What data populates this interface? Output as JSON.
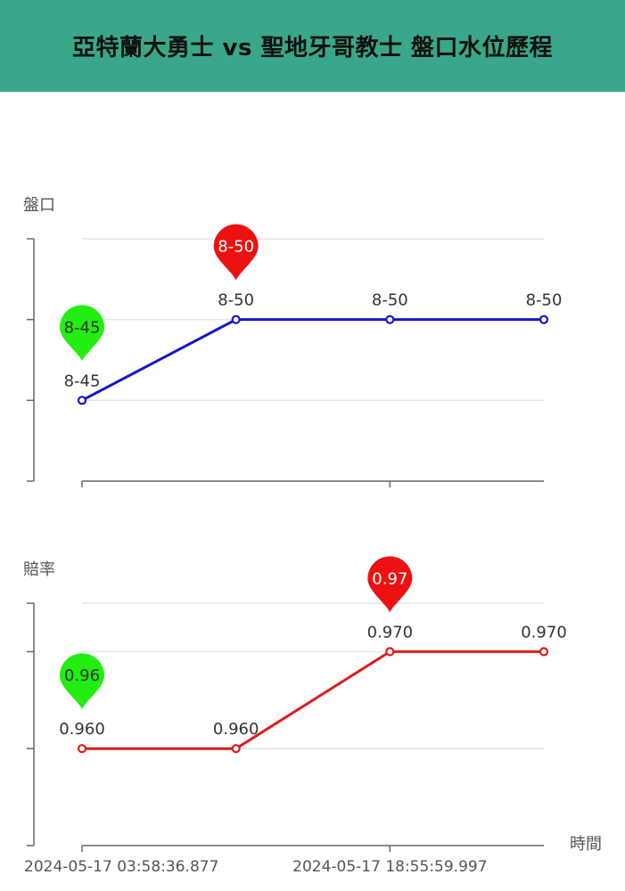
{
  "header": {
    "title": "亞特蘭大勇士 vs 聖地牙哥教士 盤口水位歷程"
  },
  "x_axis_title": "時間",
  "x_tick_labels": [
    "2024-05-17 03:58:36.877",
    "2024-05-17 18:55:59.997"
  ],
  "colors": {
    "header_bg": "#3aa68a",
    "handicap_line": "#1515c8",
    "odds_line": "#dd1c1c",
    "min_pin": "#22ee11",
    "max_pin": "#ee1111",
    "grid": "#e4e4ec",
    "axis": "#666666"
  },
  "chart_data": [
    {
      "type": "line",
      "ylabel": "盤口",
      "categories": [
        1,
        2,
        3,
        4
      ],
      "series": [
        {
          "values": [
            45,
            50,
            50,
            50
          ],
          "labels": [
            "8-45",
            "8-50",
            "8-50",
            "8-50"
          ]
        }
      ],
      "ylim": [
        40,
        55
      ],
      "y_gridlines": [
        45,
        50,
        55
      ],
      "markers": [
        {
          "kind": "min",
          "index": 0,
          "label": "8-45"
        },
        {
          "kind": "max",
          "index": 1,
          "label": "8-50"
        }
      ]
    },
    {
      "type": "line",
      "ylabel": "賠率",
      "categories": [
        1,
        2,
        3,
        4
      ],
      "series": [
        {
          "values": [
            0.96,
            0.96,
            0.97,
            0.97
          ],
          "labels": [
            "0.960",
            "0.960",
            "0.970",
            "0.970"
          ]
        }
      ],
      "ylim": [
        0.95,
        0.975
      ],
      "y_gridlines": [
        0.96,
        0.97,
        0.975
      ],
      "markers": [
        {
          "kind": "min",
          "index": 0,
          "label": "0.96"
        },
        {
          "kind": "max",
          "index": 2,
          "label": "0.97"
        }
      ]
    }
  ]
}
